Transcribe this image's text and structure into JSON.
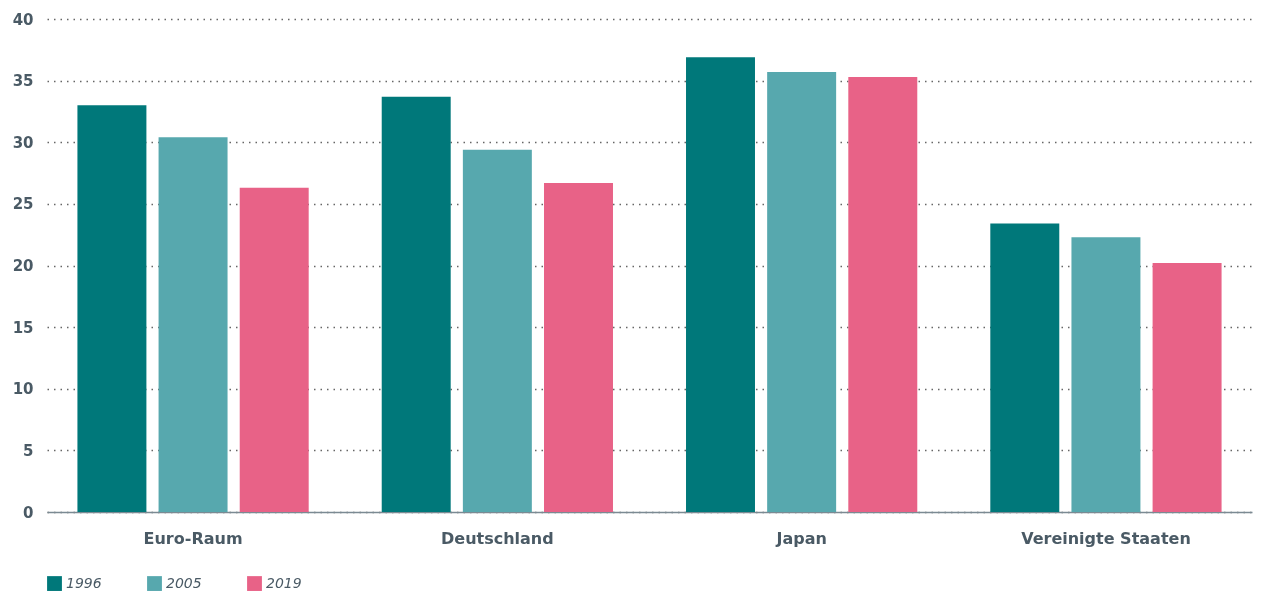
{
  "chart_data": {
    "type": "bar",
    "categories": [
      "Euro-Raum",
      "Deutschland",
      "Japan",
      "Vereinigte Staaten"
    ],
    "series": [
      {
        "name": "1996",
        "color": "#00787a",
        "values": [
          33.0,
          33.7,
          36.9,
          23.4
        ]
      },
      {
        "name": "2005",
        "color": "#57a8ae",
        "values": [
          30.4,
          29.4,
          35.7,
          22.3
        ]
      },
      {
        "name": "2019",
        "color": "#e86287",
        "values": [
          26.3,
          26.7,
          35.3,
          20.2
        ]
      }
    ],
    "ylim": [
      0,
      40
    ],
    "yticks": [
      0,
      5,
      10,
      15,
      20,
      25,
      30,
      35,
      40
    ],
    "grid": "y",
    "legend": "bottom left"
  }
}
